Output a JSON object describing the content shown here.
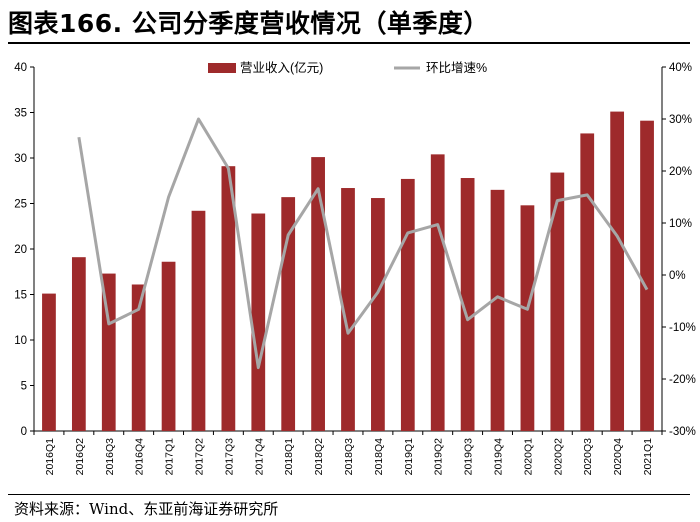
{
  "figure": {
    "title": "图表166. 公司分季度营收情况（单季度）",
    "source": "资料来源：Wind、东亚前海证券研究所"
  },
  "colors": {
    "bar": "#9E2A2B",
    "line": "#A6A6A6",
    "axis": "#000000",
    "title_rule": "#000000"
  },
  "chart_data": {
    "type": "bar",
    "categories": [
      "2016Q1",
      "2016Q2",
      "2016Q3",
      "2016Q4",
      "2017Q1",
      "2017Q2",
      "2017Q3",
      "2017Q4",
      "2018Q1",
      "2018Q2",
      "2018Q3",
      "2018Q4",
      "2019Q1",
      "2019Q2",
      "2019Q3",
      "2019Q4",
      "2020Q1",
      "2020Q2",
      "2020Q3",
      "2020Q4",
      "2021Q1"
    ],
    "series": [
      {
        "name": "营业收入(亿元)",
        "type": "bar",
        "axis": "left",
        "values": [
          15.1,
          19.1,
          17.3,
          16.1,
          18.6,
          24.2,
          29.1,
          23.9,
          25.7,
          30.1,
          26.7,
          25.6,
          27.7,
          30.4,
          27.8,
          26.5,
          24.8,
          28.4,
          32.7,
          35.1,
          34.1
        ]
      },
      {
        "name": "环比增速%",
        "type": "line",
        "axis": "right",
        "values": [
          null,
          26.5,
          -9.4,
          -6.6,
          15.0,
          30.0,
          20.5,
          -17.8,
          7.7,
          16.6,
          -11.2,
          -3.3,
          8.1,
          9.7,
          -8.6,
          -4.2,
          -6.6,
          14.3,
          15.4,
          7.5,
          -2.8
        ]
      }
    ],
    "ylim": [
      0,
      40
    ],
    "y_ticks": [
      0,
      5,
      10,
      15,
      20,
      25,
      30,
      35,
      40
    ],
    "y2lim": [
      -30,
      40
    ],
    "y2_ticks": [
      -30,
      -20,
      -10,
      0,
      10,
      20,
      30,
      40
    ],
    "y2_tick_labels": [
      "-30%",
      "-20%",
      "-10%",
      "0%",
      "10%",
      "20%",
      "30%",
      "40%"
    ],
    "x_tick_labels": [
      "2016Q1",
      "2016Q2",
      "2016Q3",
      "2016Q4",
      "2017Q1",
      "2017Q2",
      "2017Q3",
      "2017Q4",
      "2018Q1",
      "2018Q2",
      "2018Q3",
      "2018Q4",
      "2019Q1",
      "2019Q2",
      "2019Q3",
      "2019Q4",
      "2020Q1",
      "2020Q2",
      "2020Q3",
      "2020Q4",
      "2021Q1"
    ],
    "legend_position": "top-center",
    "grid": false
  }
}
